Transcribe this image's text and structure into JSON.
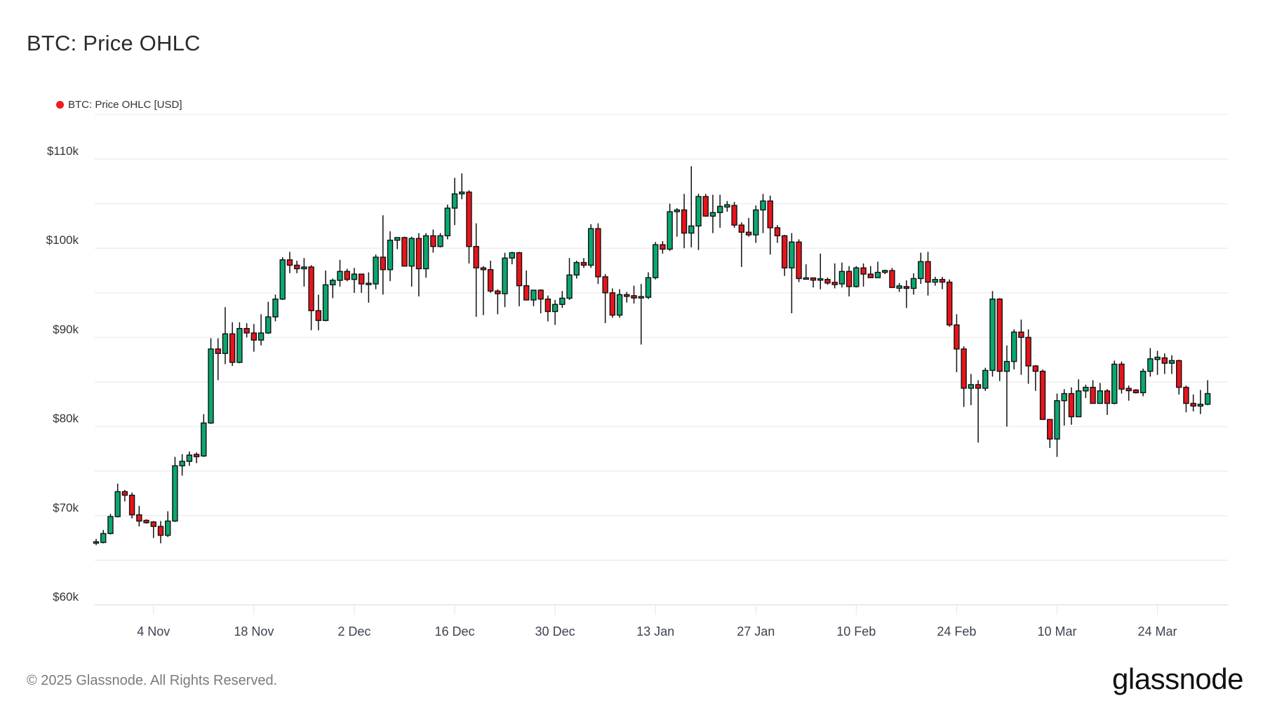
{
  "header": {
    "title": "BTC: Price OHLC"
  },
  "legend": {
    "items": [
      {
        "label": "BTC: Price OHLC [USD]",
        "color": "#ee1c1c"
      }
    ]
  },
  "footer": {
    "copyright": "© 2025 Glassnode. All Rights Reserved.",
    "logo": "glassnode"
  },
  "colors": {
    "up": "#0aa86e",
    "down": "#e8141b",
    "outline": "#111111",
    "grid": "#eeeeee",
    "axis_text": "#333333"
  },
  "chart_data": {
    "type": "candlestick",
    "title": "BTC: Price OHLC",
    "xlabel": "",
    "ylabel": "",
    "series_name": "BTC: Price OHLC [USD]",
    "ylim": [
      60000,
      115000
    ],
    "y_ticks": [
      {
        "value": 60000,
        "label": "$60k"
      },
      {
        "value": 70000,
        "label": "$70k"
      },
      {
        "value": 80000,
        "label": "$80k"
      },
      {
        "value": 90000,
        "label": "$90k"
      },
      {
        "value": 100000,
        "label": "$100k"
      },
      {
        "value": 110000,
        "label": "$110k"
      }
    ],
    "x_ticks": [
      {
        "day": 8,
        "label": "4 Nov"
      },
      {
        "day": 22,
        "label": "18 Nov"
      },
      {
        "day": 36,
        "label": "2 Dec"
      },
      {
        "day": 50,
        "label": "16 Dec"
      },
      {
        "day": 64,
        "label": "30 Dec"
      },
      {
        "day": 78,
        "label": "13 Jan"
      },
      {
        "day": 92,
        "label": "27 Jan"
      },
      {
        "day": 106,
        "label": "10 Feb"
      },
      {
        "day": 120,
        "label": "24 Feb"
      },
      {
        "day": 134,
        "label": "10 Mar"
      },
      {
        "day": 148,
        "label": "24 Mar"
      }
    ],
    "start_date": "27 Oct",
    "grid": true,
    "legend_position": "top-left",
    "candles": [
      [
        67000,
        67400,
        66700,
        67000
      ],
      [
        67000,
        68400,
        66900,
        68000
      ],
      [
        68000,
        70200,
        67900,
        69900
      ],
      [
        69900,
        73600,
        69800,
        72700
      ],
      [
        72700,
        72900,
        71600,
        72300
      ],
      [
        72300,
        72600,
        69700,
        70100
      ],
      [
        70100,
        71100,
        68800,
        69400
      ],
      [
        69400,
        69600,
        69100,
        69300
      ],
      [
        69300,
        69400,
        67500,
        68800
      ],
      [
        68800,
        69400,
        66900,
        67800
      ],
      [
        67800,
        70500,
        67600,
        69400
      ],
      [
        69400,
        76600,
        69300,
        75600
      ],
      [
        75600,
        76900,
        74500,
        76100
      ],
      [
        76100,
        77200,
        75600,
        76800
      ],
      [
        76800,
        77100,
        75900,
        76700
      ],
      [
        76700,
        81400,
        76600,
        80400
      ],
      [
        80400,
        89900,
        80300,
        88700
      ],
      [
        88700,
        89900,
        85200,
        88200
      ],
      [
        88200,
        93400,
        87000,
        90400
      ],
      [
        90400,
        91700,
        86800,
        87200
      ],
      [
        87200,
        91700,
        87100,
        91000
      ],
      [
        91000,
        91600,
        90000,
        90500
      ],
      [
        90500,
        91500,
        88400,
        89700
      ],
      [
        89700,
        92600,
        89100,
        90500
      ],
      [
        90500,
        94000,
        90400,
        92300
      ],
      [
        92300,
        94800,
        91800,
        94300
      ],
      [
        94300,
        99000,
        94200,
        98700
      ],
      [
        98700,
        99600,
        97200,
        98100
      ],
      [
        98100,
        98600,
        97200,
        97700
      ],
      [
        97700,
        98900,
        95700,
        97900
      ],
      [
        97900,
        98100,
        90800,
        93000
      ],
      [
        93000,
        94800,
        90800,
        91900
      ],
      [
        91900,
        97500,
        91800,
        95900
      ],
      [
        95900,
        96600,
        94400,
        96400
      ],
      [
        96400,
        98700,
        95700,
        97400
      ],
      [
        97400,
        97700,
        96300,
        96500
      ],
      [
        96500,
        97800,
        95000,
        97100
      ],
      [
        97100,
        97100,
        95000,
        96000
      ],
      [
        96000,
        97300,
        93900,
        96000
      ],
      [
        96000,
        99300,
        95400,
        99000
      ],
      [
        99000,
        103700,
        94800,
        97600
      ],
      [
        97600,
        101900,
        96300,
        100900
      ],
      [
        100900,
        101200,
        99900,
        101200
      ],
      [
        101200,
        101300,
        99100,
        98000
      ],
      [
        98000,
        101300,
        95700,
        101100
      ],
      [
        101100,
        101700,
        94600,
        97700
      ],
      [
        97700,
        101700,
        96700,
        101400
      ],
      [
        101400,
        102100,
        99500,
        100200
      ],
      [
        100200,
        101700,
        100100,
        101400
      ],
      [
        101400,
        104900,
        101000,
        104500
      ],
      [
        104500,
        107900,
        102600,
        106100
      ],
      [
        106100,
        108400,
        105500,
        106300
      ],
      [
        106300,
        106500,
        98300,
        100200
      ],
      [
        100200,
        102800,
        92300,
        97800
      ],
      [
        97800,
        98000,
        92500,
        97600
      ],
      [
        97600,
        98600,
        95000,
        95200
      ],
      [
        95200,
        95400,
        92600,
        94900
      ],
      [
        94900,
        99500,
        93400,
        98900
      ],
      [
        98900,
        99600,
        98200,
        99500
      ],
      [
        99500,
        99600,
        93500,
        95800
      ],
      [
        95800,
        97500,
        94300,
        94200
      ],
      [
        94200,
        94700,
        93500,
        95300
      ],
      [
        95300,
        95400,
        92700,
        94300
      ],
      [
        94300,
        94700,
        91800,
        92900
      ],
      [
        92900,
        94200,
        91400,
        93700
      ],
      [
        93700,
        95200,
        93300,
        94400
      ],
      [
        94400,
        98900,
        94200,
        97000
      ],
      [
        97000,
        98600,
        96600,
        98400
      ],
      [
        98400,
        98900,
        97800,
        98100
      ],
      [
        98100,
        102700,
        97800,
        102200
      ],
      [
        102200,
        102800,
        96000,
        96800
      ],
      [
        96800,
        97100,
        91600,
        95000
      ],
      [
        95000,
        95500,
        92200,
        92500
      ],
      [
        92500,
        95400,
        92200,
        94800
      ],
      [
        94800,
        95100,
        93900,
        94600
      ],
      [
        94600,
        95800,
        93800,
        94500
      ],
      [
        94500,
        96000,
        89200,
        94500
      ],
      [
        94500,
        97300,
        94300,
        96700
      ],
      [
        96700,
        100700,
        96500,
        100400
      ],
      [
        100400,
        100800,
        99400,
        99900
      ],
      [
        99900,
        105000,
        99700,
        104100
      ],
      [
        104100,
        104500,
        101300,
        104300
      ],
      [
        104300,
        106100,
        100000,
        101700
      ],
      [
        101700,
        109200,
        100100,
        102500
      ],
      [
        102500,
        106100,
        99800,
        105800
      ],
      [
        105800,
        106100,
        103800,
        103600
      ],
      [
        103600,
        106000,
        101700,
        104000
      ],
      [
        104000,
        106000,
        102300,
        104700
      ],
      [
        104700,
        105300,
        104100,
        104800
      ],
      [
        104800,
        105200,
        102300,
        102600
      ],
      [
        102600,
        102900,
        97900,
        101800
      ],
      [
        101800,
        103400,
        101300,
        101500
      ],
      [
        101500,
        104800,
        100600,
        104300
      ],
      [
        104300,
        106100,
        101700,
        105300
      ],
      [
        105300,
        105900,
        99300,
        102300
      ],
      [
        102300,
        102600,
        100600,
        101400
      ],
      [
        101400,
        101500,
        96900,
        97800
      ],
      [
        97800,
        101700,
        92700,
        100700
      ],
      [
        100700,
        101000,
        96200,
        96600
      ],
      [
        96600,
        98200,
        96500,
        96600
      ],
      [
        96600,
        96600,
        95600,
        96500
      ],
      [
        96500,
        99400,
        95400,
        96500
      ],
      [
        96500,
        96700,
        95900,
        96100
      ],
      [
        96100,
        98300,
        95500,
        96000
      ],
      [
        96000,
        98400,
        95600,
        97400
      ],
      [
        97400,
        98000,
        94600,
        95700
      ],
      [
        95700,
        98000,
        95600,
        97800
      ],
      [
        97800,
        98300,
        95700,
        97100
      ],
      [
        97100,
        98000,
        96700,
        96700
      ],
      [
        96700,
        98500,
        96800,
        97300
      ],
      [
        97300,
        97600,
        97100,
        97500
      ],
      [
        97500,
        97800,
        95800,
        95600
      ],
      [
        95600,
        96100,
        95100,
        95700
      ],
      [
        95700,
        96400,
        93300,
        95500
      ],
      [
        95500,
        97200,
        94800,
        96600
      ],
      [
        96600,
        99500,
        96000,
        98500
      ],
      [
        98500,
        99600,
        94700,
        96200
      ],
      [
        96200,
        96800,
        95800,
        96500
      ],
      [
        96500,
        96800,
        95400,
        96200
      ],
      [
        96200,
        96500,
        91200,
        91400
      ],
      [
        91400,
        92600,
        86100,
        88700
      ],
      [
        88700,
        89000,
        82200,
        84300
      ],
      [
        84300,
        85900,
        82400,
        84700
      ],
      [
        84700,
        85200,
        78200,
        84300
      ],
      [
        84300,
        86600,
        84000,
        86300
      ],
      [
        86300,
        95200,
        85600,
        94300
      ],
      [
        94300,
        94400,
        85100,
        86200
      ],
      [
        86200,
        89100,
        80000,
        87300
      ],
      [
        87300,
        90900,
        86400,
        90600
      ],
      [
        90600,
        92000,
        85800,
        90000
      ],
      [
        90000,
        90900,
        84800,
        86800
      ],
      [
        86800,
        86900,
        84000,
        86200
      ],
      [
        86200,
        86400,
        80900,
        80800
      ],
      [
        80800,
        80000,
        77600,
        78600
      ],
      [
        78600,
        83700,
        76600,
        82900
      ],
      [
        82900,
        84200,
        80100,
        83700
      ],
      [
        83700,
        84400,
        80200,
        81100
      ],
      [
        81100,
        85300,
        81500,
        84000
      ],
      [
        84000,
        84700,
        83200,
        84400
      ],
      [
        84400,
        85200,
        82600,
        82600
      ],
      [
        82600,
        84900,
        82800,
        84000
      ],
      [
        84000,
        84200,
        81300,
        82600
      ],
      [
        82600,
        87400,
        82500,
        87000
      ],
      [
        87000,
        87300,
        83700,
        84200
      ],
      [
        84200,
        84600,
        82900,
        84100
      ],
      [
        84100,
        84200,
        83700,
        83800
      ],
      [
        83800,
        86500,
        83400,
        86200
      ],
      [
        86200,
        88800,
        85600,
        87600
      ],
      [
        87600,
        88500,
        85800,
        87700
      ],
      [
        87700,
        88200,
        85900,
        87100
      ],
      [
        87100,
        88000,
        85900,
        87400
      ],
      [
        87400,
        87500,
        83600,
        84400
      ],
      [
        84400,
        84600,
        81600,
        82600
      ],
      [
        82600,
        83600,
        81700,
        82300
      ],
      [
        82300,
        84100,
        81400,
        82500
      ],
      [
        82500,
        85200,
        82400,
        83700
      ]
    ]
  }
}
